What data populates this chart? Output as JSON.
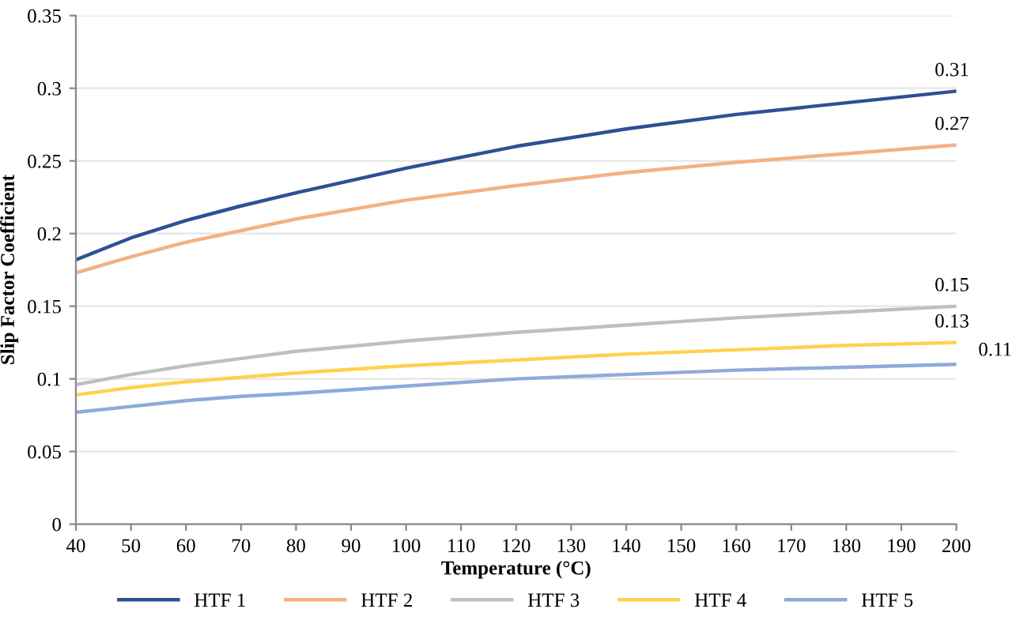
{
  "chart_data": {
    "type": "line",
    "xlabel": "Temperature (°C)",
    "ylabel": "Slip Factor Coefficient",
    "x": [
      40,
      50,
      60,
      70,
      80,
      100,
      120,
      140,
      160,
      180,
      200
    ],
    "series": [
      {
        "name": "HTF 1",
        "color": "#2e5094",
        "values": [
          0.182,
          0.197,
          0.209,
          0.219,
          0.228,
          0.245,
          0.26,
          0.272,
          0.282,
          0.29,
          0.298
        ]
      },
      {
        "name": "HTF 2",
        "color": "#f4b183",
        "values": [
          0.173,
          0.184,
          0.194,
          0.202,
          0.21,
          0.223,
          0.233,
          0.242,
          0.249,
          0.255,
          0.261
        ]
      },
      {
        "name": "HTF 3",
        "color": "#bfbfbf",
        "values": [
          0.096,
          0.103,
          0.109,
          0.114,
          0.119,
          0.126,
          0.132,
          0.137,
          0.142,
          0.146,
          0.15
        ]
      },
      {
        "name": "HTF 4",
        "color": "#ffd24d",
        "values": [
          0.089,
          0.094,
          0.098,
          0.101,
          0.104,
          0.109,
          0.113,
          0.117,
          0.12,
          0.123,
          0.125
        ]
      },
      {
        "name": "HTF 5",
        "color": "#8eaadb",
        "values": [
          0.077,
          0.081,
          0.085,
          0.088,
          0.09,
          0.095,
          0.1,
          0.103,
          0.106,
          0.108,
          0.11
        ]
      }
    ],
    "annotations": [
      "0.31",
      "0.27",
      "0.15",
      "0.13",
      "0.11"
    ],
    "xlim": [
      40,
      200
    ],
    "xticks": [
      40,
      50,
      60,
      70,
      80,
      90,
      100,
      110,
      120,
      130,
      140,
      150,
      160,
      170,
      180,
      190,
      200
    ],
    "ylim": [
      0,
      0.35
    ],
    "yticks": [
      0,
      0.05,
      0.1,
      0.15,
      0.2,
      0.25,
      0.3,
      0.35
    ],
    "grid": "y",
    "legend": "bottom",
    "marker": "none",
    "line_style": "solid"
  }
}
